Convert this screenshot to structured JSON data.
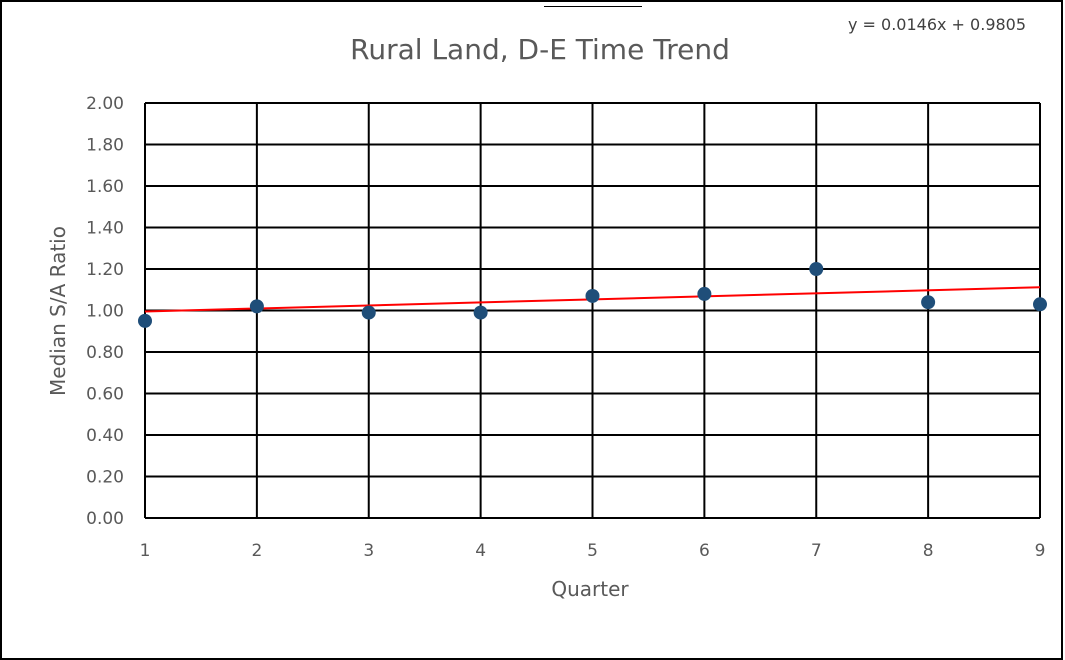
{
  "chart_data": {
    "type": "scatter",
    "title": "Rural Land, D-E Time Trend",
    "xlabel": "Quarter",
    "ylabel": "Median S/A Ratio",
    "xlim": [
      1,
      9
    ],
    "ylim": [
      0,
      2
    ],
    "x_ticks": [
      "1",
      "2",
      "3",
      "4",
      "5",
      "6",
      "7",
      "8",
      "9"
    ],
    "y_ticks": [
      "0.00",
      "0.20",
      "0.40",
      "0.60",
      "0.80",
      "1.00",
      "1.20",
      "1.40",
      "1.60",
      "1.80",
      "2.00"
    ],
    "grid": true,
    "legend": "none",
    "series": [
      {
        "x": [
          1,
          2,
          3,
          4,
          5,
          6,
          7,
          8,
          9
        ],
        "y": [
          0.95,
          1.02,
          0.99,
          0.99,
          1.07,
          1.08,
          1.2,
          1.04,
          1.03
        ],
        "color": "#1f4e79"
      }
    ],
    "trendline": {
      "slope": 0.0146,
      "intercept": 0.9805,
      "color": "#ff0000",
      "equation": "y = 0.0146x + 0.9805"
    }
  }
}
